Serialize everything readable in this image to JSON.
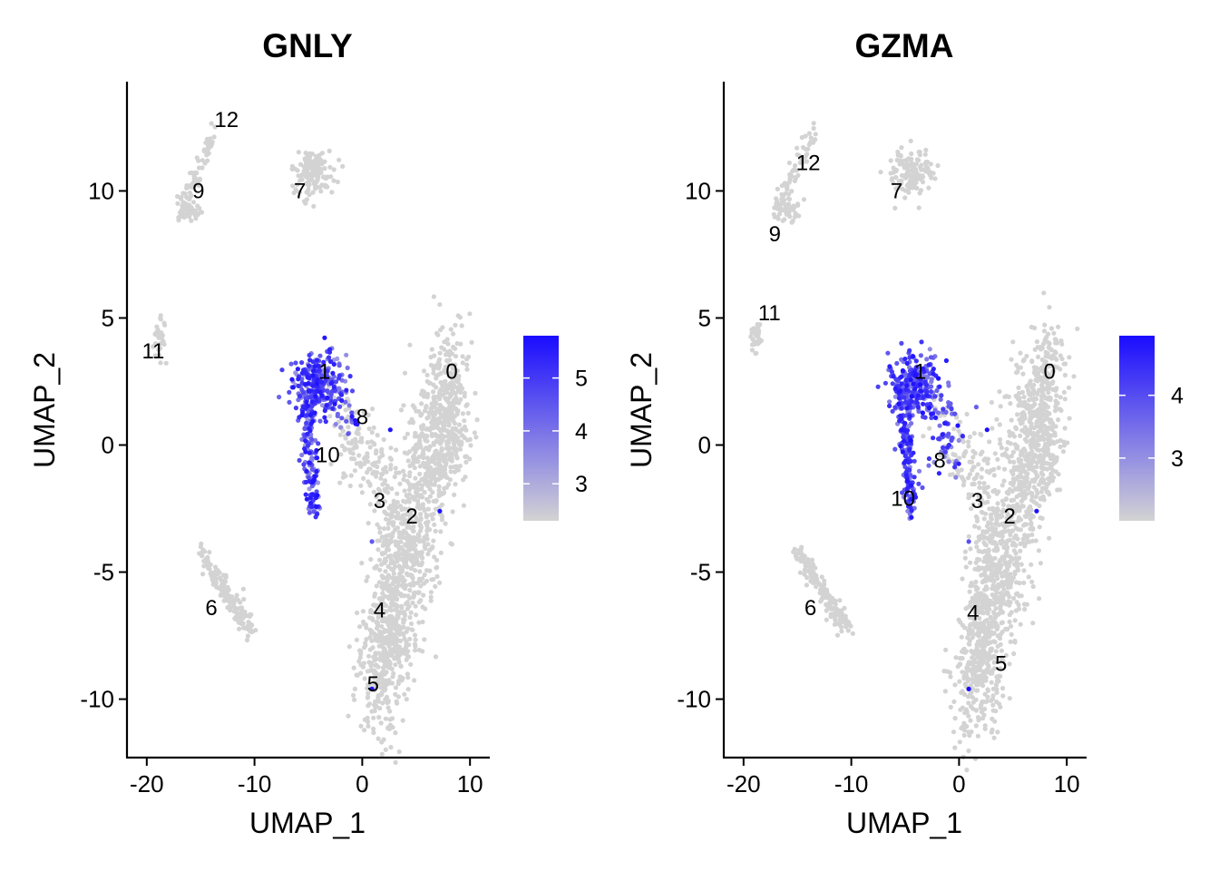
{
  "chart_data": [
    {
      "type": "scatter",
      "title": "GNLY",
      "xlabel": "UMAP_1",
      "ylabel": "UMAP_2",
      "xlim": [
        -21.5,
        11.5
      ],
      "ylim": [
        -12.3,
        14.3
      ],
      "xticks": [
        -20,
        -10,
        0,
        10
      ],
      "yticks": [
        -10,
        -5,
        0,
        5,
        10
      ],
      "xtick_labels": [
        "-20",
        "-10",
        "0",
        "10"
      ],
      "ytick_labels": [
        "-10",
        "-5",
        "0",
        "5",
        "10"
      ],
      "grid": false,
      "color_scale": {
        "low": "#d3d3d3",
        "high": "#1a0cff",
        "min": 2.3,
        "max": 5.8,
        "ticks": [
          3,
          4,
          5
        ],
        "tick_labels": [
          "3",
          "4",
          "5"
        ],
        "legend_position": "right"
      },
      "cluster_labels": [
        {
          "label": "0",
          "x": 8.3,
          "y": 2.9
        },
        {
          "label": "1",
          "x": -3.5,
          "y": 2.9
        },
        {
          "label": "2",
          "x": 4.6,
          "y": -2.8
        },
        {
          "label": "3",
          "x": 1.6,
          "y": -2.2
        },
        {
          "label": "4",
          "x": 1.6,
          "y": -6.5
        },
        {
          "label": "5",
          "x": 1.0,
          "y": -9.4
        },
        {
          "label": "6",
          "x": -14.0,
          "y": -6.4
        },
        {
          "label": "7",
          "x": -5.8,
          "y": 10.0
        },
        {
          "label": "8",
          "x": 0.0,
          "y": 1.1
        },
        {
          "label": "9",
          "x": -15.2,
          "y": 10.0
        },
        {
          "label": "10",
          "x": -3.2,
          "y": -0.4
        },
        {
          "label": "11",
          "x": -19.4,
          "y": 3.7
        },
        {
          "label": "12",
          "x": -12.6,
          "y": 12.8
        }
      ]
    },
    {
      "type": "scatter",
      "title": "GZMA",
      "xlabel": "UMAP_1",
      "ylabel": "UMAP_2",
      "xlim": [
        -21.5,
        11.5
      ],
      "ylim": [
        -12.3,
        14.3
      ],
      "xticks": [
        -20,
        -10,
        0,
        10
      ],
      "yticks": [
        -10,
        -5,
        0,
        5,
        10
      ],
      "xtick_labels": [
        "-20",
        "-10",
        "0",
        "10"
      ],
      "ytick_labels": [
        "-10",
        "-5",
        "0",
        "5",
        "10"
      ],
      "grid": false,
      "color_scale": {
        "low": "#d3d3d3",
        "high": "#1a0cff",
        "min": 2.0,
        "max": 4.95,
        "ticks": [
          3,
          4
        ],
        "tick_labels": [
          "3",
          "4"
        ],
        "legend_position": "right"
      },
      "cluster_labels": [
        {
          "label": "0",
          "x": 8.4,
          "y": 2.9
        },
        {
          "label": "1",
          "x": -3.6,
          "y": 2.9
        },
        {
          "label": "2",
          "x": 4.7,
          "y": -2.8
        },
        {
          "label": "3",
          "x": 1.7,
          "y": -2.2
        },
        {
          "label": "4",
          "x": 1.3,
          "y": -6.6
        },
        {
          "label": "5",
          "x": 3.9,
          "y": -8.6
        },
        {
          "label": "6",
          "x": -13.8,
          "y": -6.4
        },
        {
          "label": "7",
          "x": -5.8,
          "y": 10.0
        },
        {
          "label": "8",
          "x": -1.8,
          "y": -0.6
        },
        {
          "label": "9",
          "x": -17.1,
          "y": 8.3
        },
        {
          "label": "10",
          "x": -5.2,
          "y": -2.1
        },
        {
          "label": "11",
          "x": -17.6,
          "y": 5.2
        },
        {
          "label": "12",
          "x": -14.0,
          "y": 11.1
        }
      ]
    }
  ],
  "colors": {
    "low": "#d3d3d3",
    "high": "#1a0cff"
  }
}
